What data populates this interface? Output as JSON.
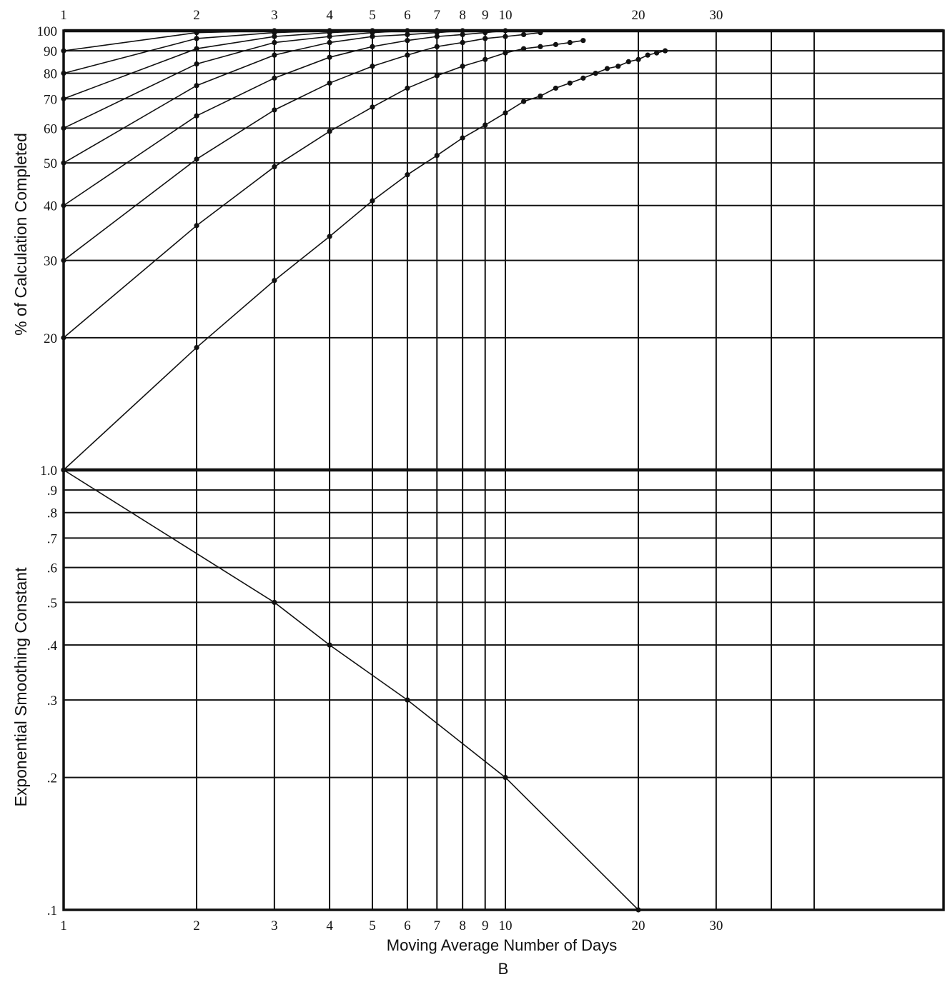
{
  "chart_data": [
    {
      "type": "line",
      "panel": "top",
      "ylabel": "% of Calculation Completed",
      "xscale": "log",
      "yscale": "log",
      "xlim": [
        1,
        50
      ],
      "ylim": [
        10,
        100
      ],
      "grid": true,
      "x_ticks": [
        "1",
        "2",
        "3",
        "4",
        "5",
        "6",
        "7",
        "8",
        "9",
        "10",
        "20",
        "30"
      ],
      "y_ticks": [
        "100",
        "90",
        "80",
        "70",
        "60",
        "50",
        "40",
        "30",
        "20"
      ],
      "series": [
        {
          "x": [
            1,
            2,
            3,
            4,
            5,
            6,
            7,
            8,
            9,
            10,
            11,
            12,
            13,
            14,
            15,
            16,
            17,
            18,
            19,
            20,
            21,
            22,
            23
          ],
          "values": [
            10,
            19,
            27,
            34,
            41,
            47,
            52,
            57,
            61,
            65,
            69,
            71,
            74,
            76,
            78,
            80,
            82,
            83,
            85,
            86,
            88,
            89,
            90
          ]
        },
        {
          "x": [
            1,
            2,
            3,
            4,
            5,
            6,
            7,
            8,
            9,
            10,
            11,
            12,
            13,
            14,
            15
          ],
          "values": [
            20,
            36,
            49,
            59,
            67,
            74,
            79,
            83,
            86,
            89,
            91,
            92,
            93,
            94,
            95
          ]
        },
        {
          "x": [
            1,
            2,
            3,
            4,
            5,
            6,
            7,
            8,
            9,
            10,
            11,
            12
          ],
          "values": [
            30,
            51,
            66,
            76,
            83,
            88,
            92,
            94,
            96,
            97,
            98,
            99
          ]
        },
        {
          "x": [
            1,
            2,
            3,
            4,
            5,
            6,
            7,
            8,
            9,
            10
          ],
          "values": [
            40,
            64,
            78,
            87,
            92,
            95,
            97,
            98,
            99,
            100
          ]
        },
        {
          "x": [
            1,
            2,
            3,
            4,
            5,
            6,
            7,
            8
          ],
          "values": [
            50,
            75,
            88,
            94,
            97,
            98,
            99,
            100
          ]
        },
        {
          "x": [
            1,
            2,
            3,
            4,
            5,
            6,
            7
          ],
          "values": [
            60,
            84,
            94,
            97,
            99,
            100,
            100
          ]
        },
        {
          "x": [
            1,
            2,
            3,
            4,
            5,
            6
          ],
          "values": [
            70,
            91,
            97,
            99,
            100,
            100
          ]
        },
        {
          "x": [
            1,
            2,
            3,
            4,
            5
          ],
          "values": [
            80,
            96,
            99,
            100,
            100
          ]
        },
        {
          "x": [
            1,
            2,
            3,
            4
          ],
          "values": [
            90,
            99,
            100,
            100
          ]
        }
      ]
    },
    {
      "type": "line",
      "panel": "bottom",
      "ylabel": "Exponential Smoothing Constant",
      "xlabel": "Moving Average Number of Days",
      "caption": "B",
      "xscale": "log",
      "yscale": "log",
      "xlim": [
        1,
        50
      ],
      "ylim": [
        0.1,
        1.0
      ],
      "grid": true,
      "x_ticks": [
        "1",
        "2",
        "3",
        "4",
        "5",
        "6",
        "7",
        "8",
        "9",
        "10",
        "20",
        "30"
      ],
      "y_ticks": [
        "1.0",
        ".9",
        ".8",
        ".7",
        ".6",
        ".5",
        ".4",
        ".3",
        ".2",
        ".1"
      ],
      "series": [
        {
          "x": [
            1,
            3,
            4,
            6,
            10,
            20
          ],
          "values": [
            1.0,
            0.5,
            0.4,
            0.3,
            0.2,
            0.1
          ]
        }
      ]
    }
  ]
}
